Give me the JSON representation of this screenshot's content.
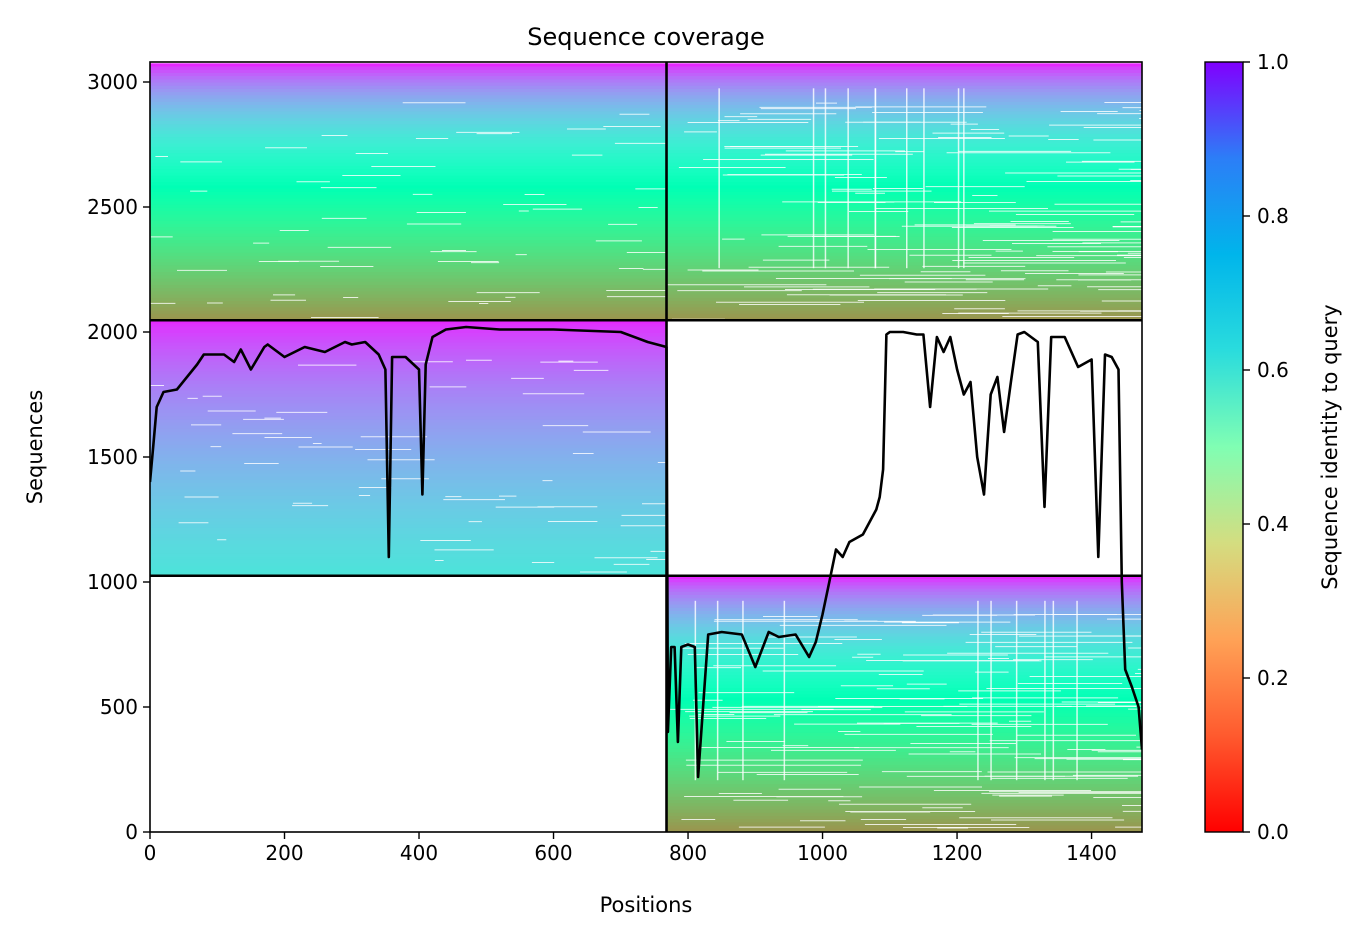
{
  "chart_data": {
    "type": "heatmap",
    "title": "Sequence coverage",
    "xlabel": "Positions",
    "ylabel": "Sequences",
    "xlim": [
      0,
      1475
    ],
    "ylim": [
      0,
      3080
    ],
    "x_ticks": [
      {
        "value": 0,
        "label": "0"
      },
      {
        "value": 200,
        "label": "200"
      },
      {
        "value": 400,
        "label": "400"
      },
      {
        "value": 600,
        "label": "600"
      },
      {
        "value": 800,
        "label": "800"
      },
      {
        "value": 1000,
        "label": "1000"
      },
      {
        "value": 1200,
        "label": "1200"
      },
      {
        "value": 1400,
        "label": "1400"
      }
    ],
    "y_ticks": [
      {
        "value": 0,
        "label": "0"
      },
      {
        "value": 500,
        "label": "500"
      },
      {
        "value": 1000,
        "label": "1000"
      },
      {
        "value": 1500,
        "label": "1500"
      },
      {
        "value": 2000,
        "label": "2000"
      },
      {
        "value": 2500,
        "label": "2500"
      },
      {
        "value": 3000,
        "label": "3000"
      }
    ],
    "block_boundaries": {
      "x": [
        768
      ],
      "y": [
        1025,
        2047
      ]
    },
    "blocks": [
      {
        "x_range": [
          0,
          768
        ],
        "y_range": [
          2047,
          3075
        ],
        "identity_top": 0.95,
        "identity_bottom": 0.2,
        "coverage": "dense"
      },
      {
        "x_range": [
          768,
          1475
        ],
        "y_range": [
          2047,
          3075
        ],
        "identity_top": 0.95,
        "identity_bottom": 0.2,
        "coverage": "gapped"
      },
      {
        "x_range": [
          0,
          768
        ],
        "y_range": [
          1025,
          2047
        ],
        "identity_top": 0.95,
        "identity_bottom": 0.65,
        "coverage": "dense"
      },
      {
        "x_range": [
          768,
          1475
        ],
        "y_range": [
          0,
          1025
        ],
        "identity_top": 0.95,
        "identity_bottom": 0.2,
        "coverage": "gapped"
      }
    ],
    "coverage_line": {
      "x": [
        0,
        5,
        10,
        20,
        40,
        70,
        80,
        110,
        125,
        135,
        150,
        170,
        175,
        200,
        230,
        260,
        290,
        300,
        320,
        340,
        350,
        355,
        360,
        380,
        400,
        405,
        410,
        420,
        440,
        470,
        520,
        600,
        700,
        740,
        768,
        770,
        775,
        780,
        785,
        790,
        800,
        810,
        815,
        830,
        850,
        880,
        900,
        920,
        935,
        960,
        980,
        990,
        1000,
        1010,
        1020,
        1030,
        1040,
        1060,
        1080,
        1085,
        1090,
        1095,
        1100,
        1120,
        1140,
        1150,
        1160,
        1170,
        1180,
        1190,
        1200,
        1210,
        1220,
        1230,
        1240,
        1245,
        1250,
        1260,
        1270,
        1280,
        1290,
        1300,
        1320,
        1330,
        1340,
        1360,
        1380,
        1400,
        1410,
        1420,
        1430,
        1440,
        1445,
        1450,
        1460,
        1470,
        1475
      ],
      "y": [
        1400,
        1550,
        1700,
        1760,
        1770,
        1870,
        1910,
        1910,
        1880,
        1930,
        1850,
        1940,
        1950,
        1900,
        1940,
        1920,
        1960,
        1950,
        1960,
        1910,
        1850,
        1100,
        1900,
        1900,
        1850,
        1350,
        1870,
        1980,
        2010,
        2020,
        2010,
        2010,
        2000,
        1960,
        1940,
        400,
        740,
        740,
        360,
        740,
        750,
        740,
        220,
        790,
        800,
        790,
        660,
        800,
        780,
        790,
        700,
        760,
        870,
        1000,
        1130,
        1100,
        1160,
        1190,
        1290,
        1340,
        1450,
        1990,
        2000,
        2000,
        1990,
        1990,
        1700,
        1980,
        1920,
        1980,
        1850,
        1750,
        1800,
        1500,
        1350,
        1550,
        1750,
        1820,
        1600,
        1800,
        1990,
        2000,
        1960,
        1300,
        1980,
        1980,
        1860,
        1890,
        1100,
        1910,
        1900,
        1850,
        1000,
        650,
        580,
        500,
        330
      ]
    },
    "colorbar": {
      "label": "Sequence identity to query",
      "colormap": "rainbow_r",
      "range": [
        0.0,
        1.0
      ],
      "ticks": [
        {
          "value": 0.0,
          "label": "0.0"
        },
        {
          "value": 0.2,
          "label": "0.2"
        },
        {
          "value": 0.4,
          "label": "0.4"
        },
        {
          "value": 0.6,
          "label": "0.6"
        },
        {
          "value": 0.8,
          "label": "0.8"
        },
        {
          "value": 1.0,
          "label": "1.0"
        }
      ]
    }
  }
}
